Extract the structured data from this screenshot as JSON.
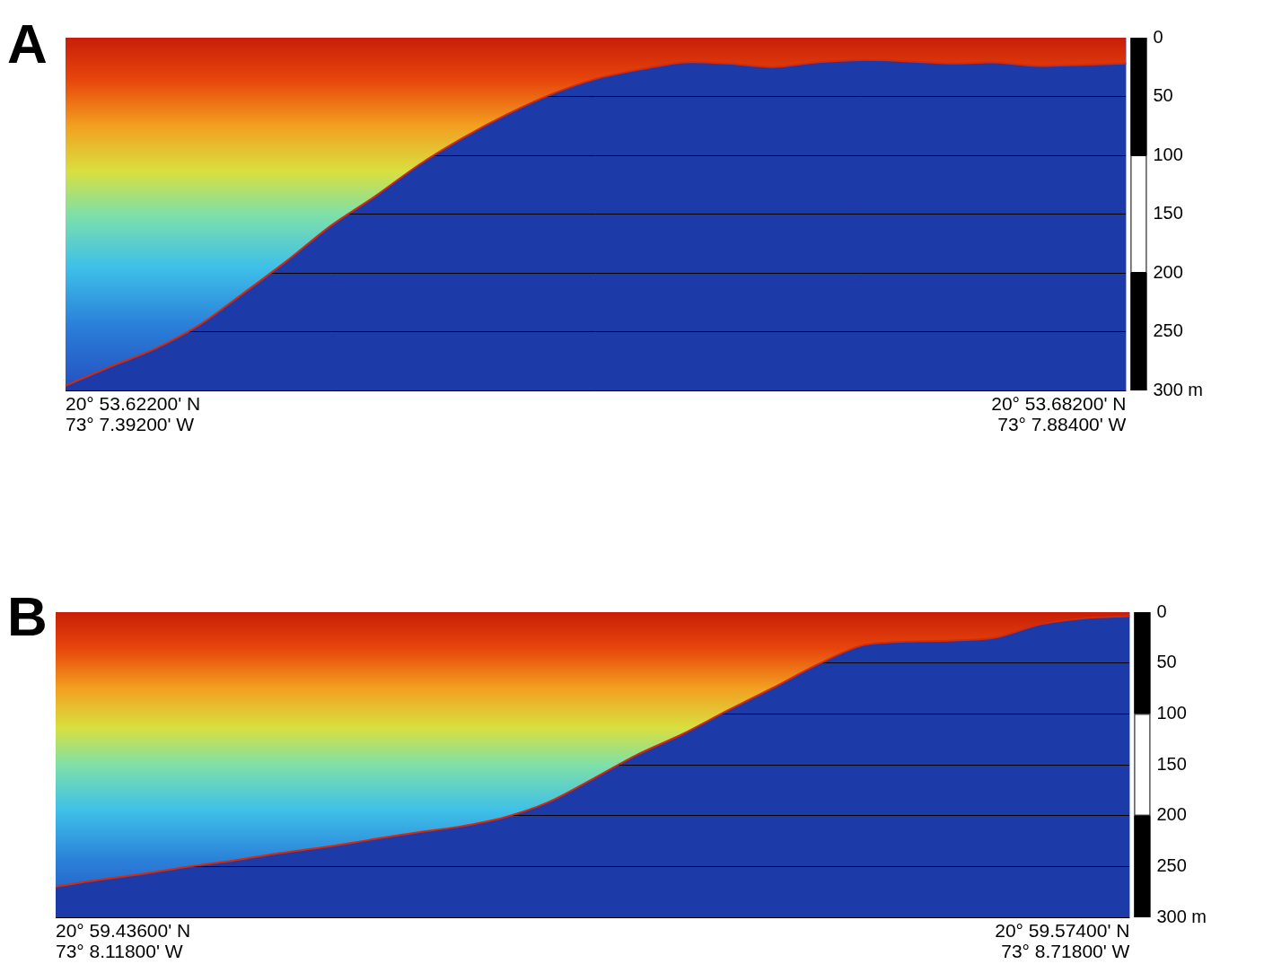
{
  "chart_data": [
    {
      "panel": "A",
      "type": "area",
      "categories": [
        null,
        null,
        null,
        null,
        null,
        null,
        null,
        null,
        null,
        null,
        null,
        null,
        null,
        null,
        null,
        null,
        null,
        null,
        null,
        null,
        null,
        null,
        null,
        null,
        null
      ],
      "values": [
        296,
        280,
        265,
        245,
        218,
        190,
        160,
        135,
        108,
        85,
        65,
        48,
        35,
        27,
        21,
        22,
        25,
        21,
        19,
        20,
        22,
        21,
        24,
        23,
        22
      ],
      "color": "#d62a0a",
      "ylim": [
        0,
        300
      ],
      "yticks": [
        0,
        50,
        100,
        150,
        200,
        250,
        {
          "value": 300,
          "label": "300 m"
        }
      ],
      "grid": true,
      "tick_labels": "y",
      "x_start_label": [
        "20° 53.62200' N",
        "73° 7.39200' W"
      ],
      "x_end_label": [
        "20° 53.68200' N",
        "73° 7.88400' W"
      ]
    },
    {
      "panel": "B",
      "type": "area",
      "categories": [
        null,
        null,
        null,
        null,
        null,
        null,
        null,
        null,
        null,
        null,
        null,
        null,
        null,
        null,
        null,
        null,
        null,
        null,
        null,
        null,
        null,
        null,
        null,
        null,
        null
      ],
      "values": [
        270,
        263,
        257,
        250,
        244,
        237,
        231,
        224,
        217,
        211,
        202,
        187,
        164,
        140,
        120,
        97,
        75,
        52,
        33,
        29,
        28,
        25,
        12,
        6,
        4
      ],
      "color": "#d62a0a",
      "ylim": [
        0,
        300
      ],
      "yticks": [
        0,
        50,
        100,
        150,
        200,
        250,
        {
          "value": 300,
          "label": "300 m"
        }
      ],
      "grid": true,
      "tick_labels": "y",
      "x_start_label": [
        "20° 59.43600' N",
        "73° 8.11800' W"
      ],
      "x_end_label": [
        "20° 59.57400' N",
        "73° 8.71800' W"
      ]
    }
  ]
}
